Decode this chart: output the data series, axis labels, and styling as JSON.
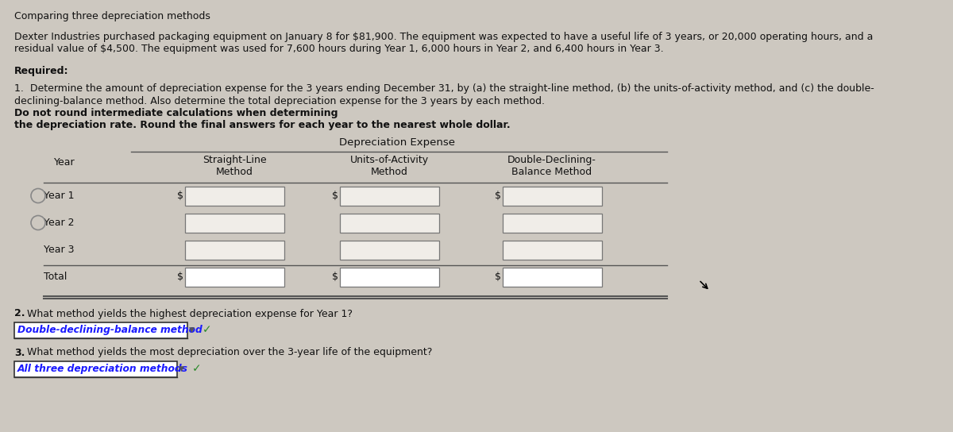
{
  "title": "Comparing three depreciation methods",
  "bg_color": "#cdc8c0",
  "text_color": "#111111",
  "paragraph1_line1": "Dexter Industries purchased packaging equipment on January 8 for $81,900. The equipment was expected to have a useful life of 3 years, or 20,000 operating hours, and a",
  "paragraph1_line2": "residual value of $4,500. The equipment was used for 7,600 hours during Year 1, 6,000 hours in Year 2, and 6,400 hours in Year 3.",
  "required_label": "Required:",
  "p2_line1_normal": "1.  Determine the amount of depreciation expense for the 3 years ending December 31, by (a) the straight-line method, (b) the units-of-activity method, and (c) the double-",
  "p2_line2_normal": "declining-balance method. Also determine the total depreciation expense for the 3 years by each method. ",
  "p2_line2_bold": "Do not round intermediate calculations when determining",
  "p2_line3_bold": "the depreciation rate. Round the final answers for each year to the nearest whole dollar.",
  "table_header_center": "Depreciation Expense",
  "col_header1_line1": "Straight-Line",
  "col_header1_line2": "Method",
  "col_header2_line1": "Units-of-Activity",
  "col_header2_line2": "Method",
  "col_header3_line1": "Double-Declining-",
  "col_header3_line2": "Balance Method",
  "year_label": "Year",
  "row_labels": [
    "Year 1",
    "Year 2",
    "Year 3",
    "Total"
  ],
  "q2_label": "2.",
  "q2_text": " What method yields the highest depreciation expense for Year 1?",
  "q2_answer": "Double-declining-balance method",
  "q3_label": "3.",
  "q3_text": " What method yields the most depreciation over the 3-year life of the equipment?",
  "q3_answer": "All three depreciation methods",
  "checkmark": "✓",
  "answer_text_color": "#1a1aff",
  "answer_box_border": "#333333",
  "line_color": "#555555",
  "box_fill": "#f0ede8"
}
